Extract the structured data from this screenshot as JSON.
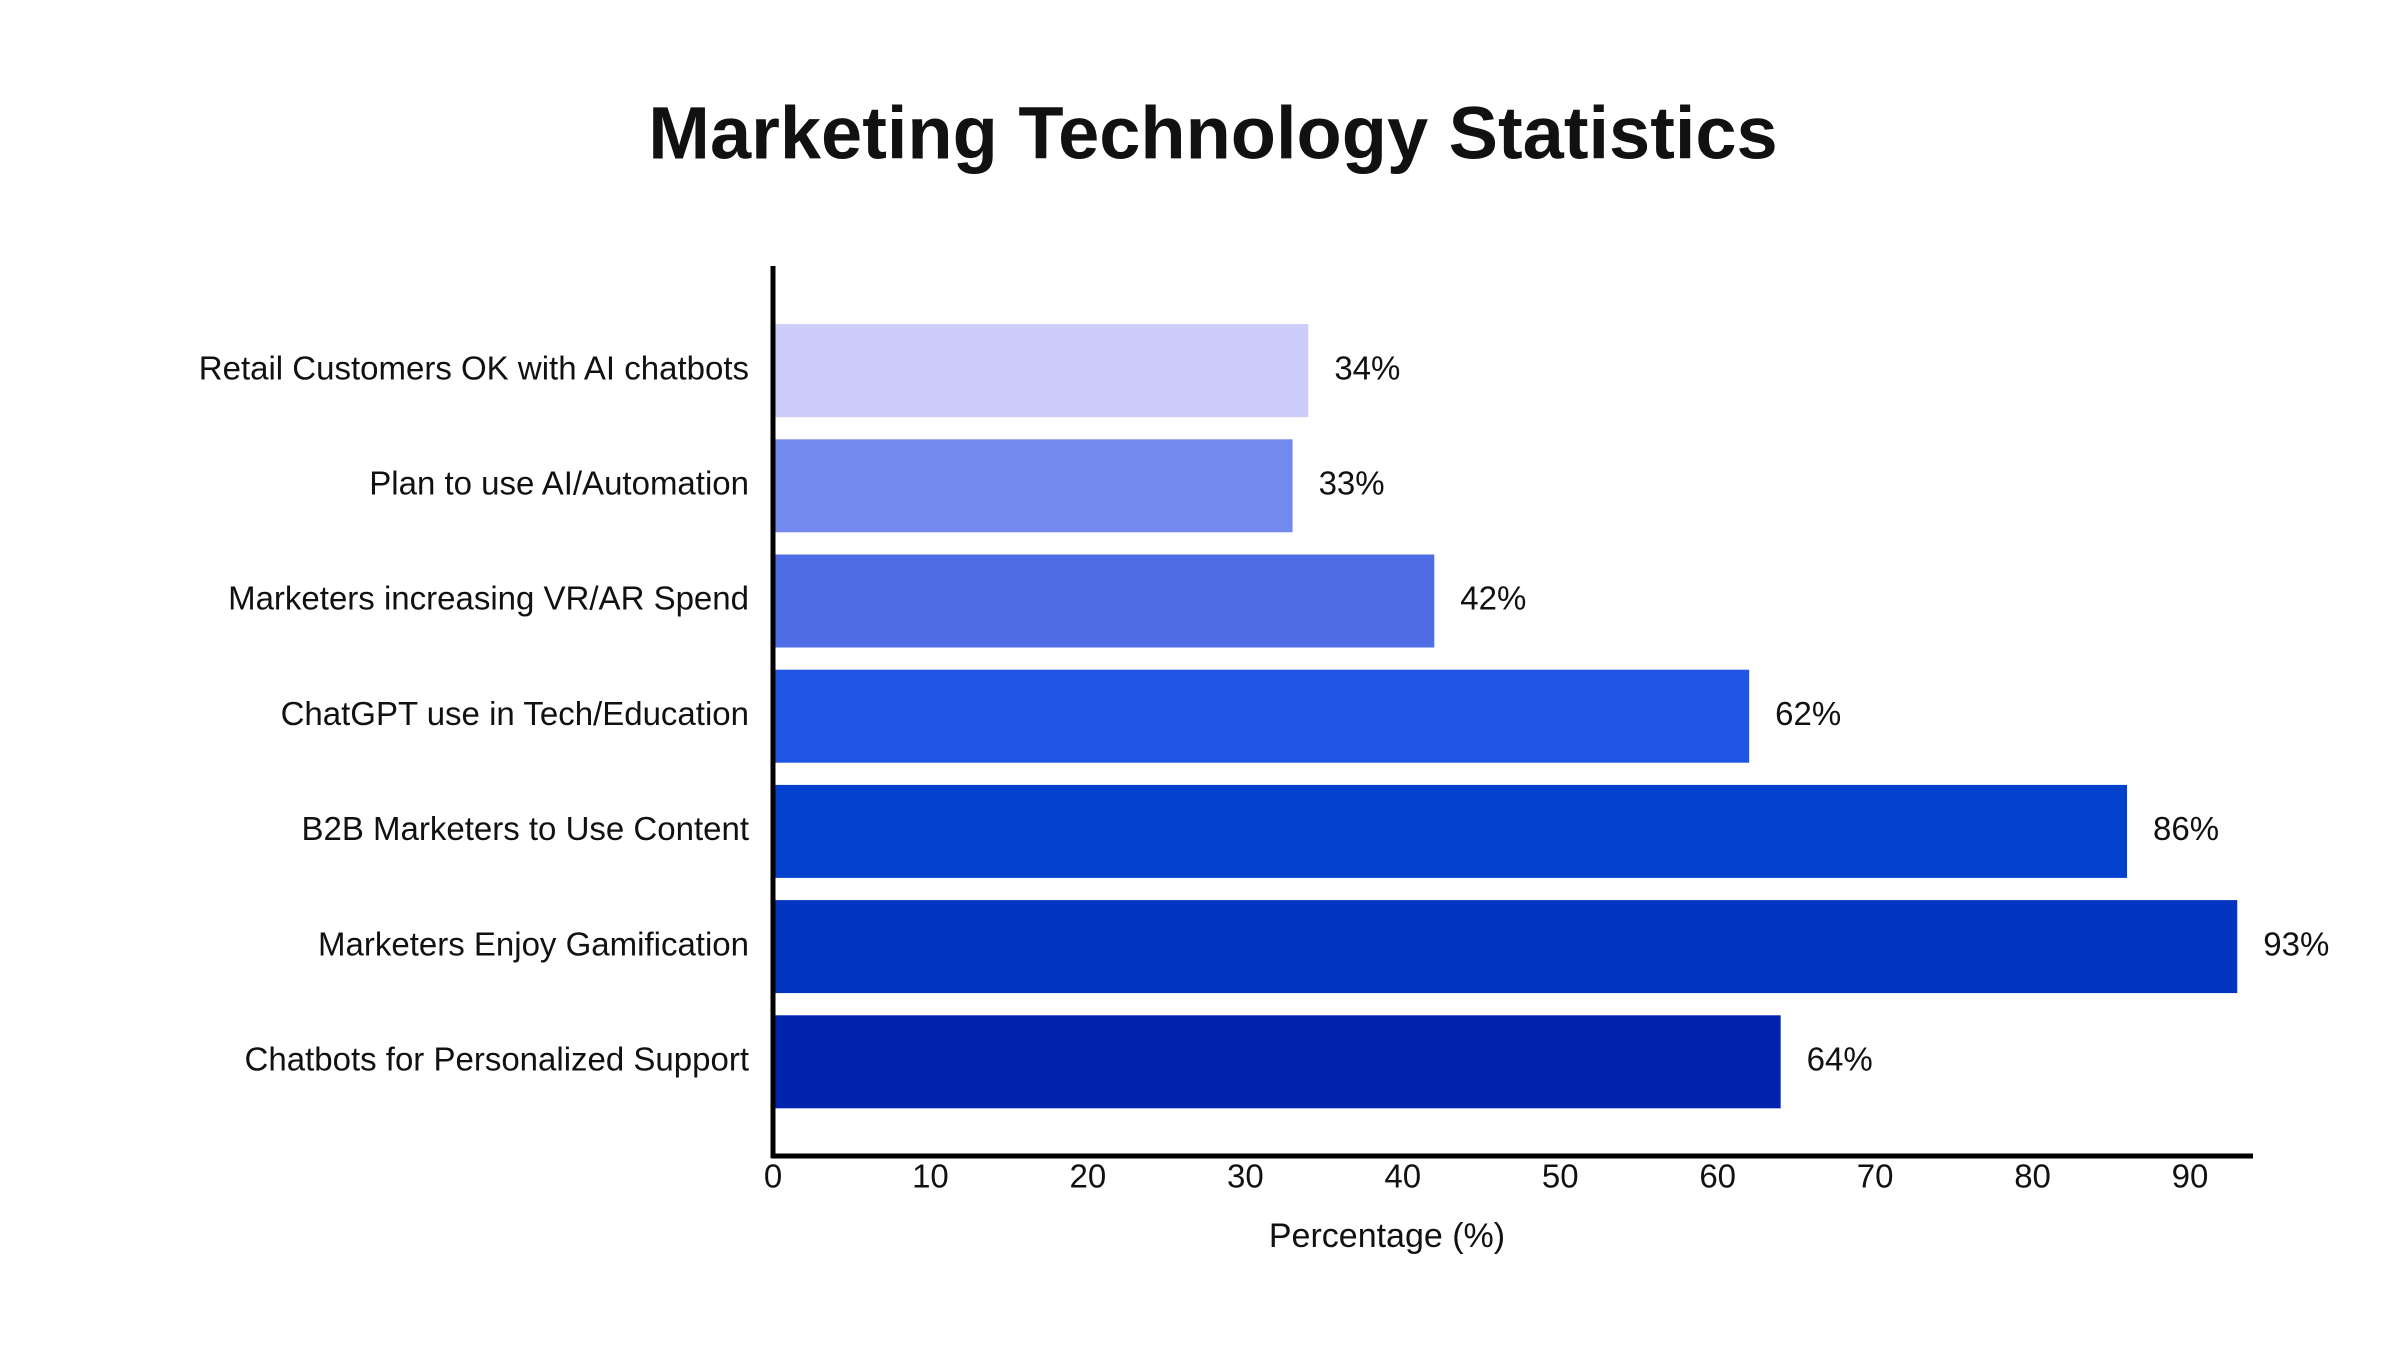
{
  "chart_data": {
    "type": "bar",
    "orientation": "horizontal",
    "title": "Marketing Technology Statistics",
    "x_label": "Percentage (%)",
    "categories": [
      "Retail Customers OK with AI chatbots",
      "Plan to use AI/Automation",
      "Marketers increasing VR/AR Spend",
      "ChatGPT use in Tech/Education",
      "B2B Marketers to Use Content",
      "Marketers Enjoy Gamification",
      "Chatbots for Personalized Support"
    ],
    "values": [
      34,
      33,
      42,
      62,
      86,
      93,
      64
    ],
    "value_labels": [
      "34%",
      "33%",
      "42%",
      "62%",
      "86%",
      "93%",
      "64%"
    ],
    "colors": [
      "#cccdf8",
      "#7489ed",
      "#4f6ee6",
      "#1e56e3",
      "#0441cc",
      "#0335c0",
      "#0222b0"
    ],
    "xlim": [
      0,
      94
    ],
    "xticks": [
      0,
      10,
      20,
      30,
      40,
      50,
      60,
      70,
      80,
      90
    ],
    "grid": false
  }
}
